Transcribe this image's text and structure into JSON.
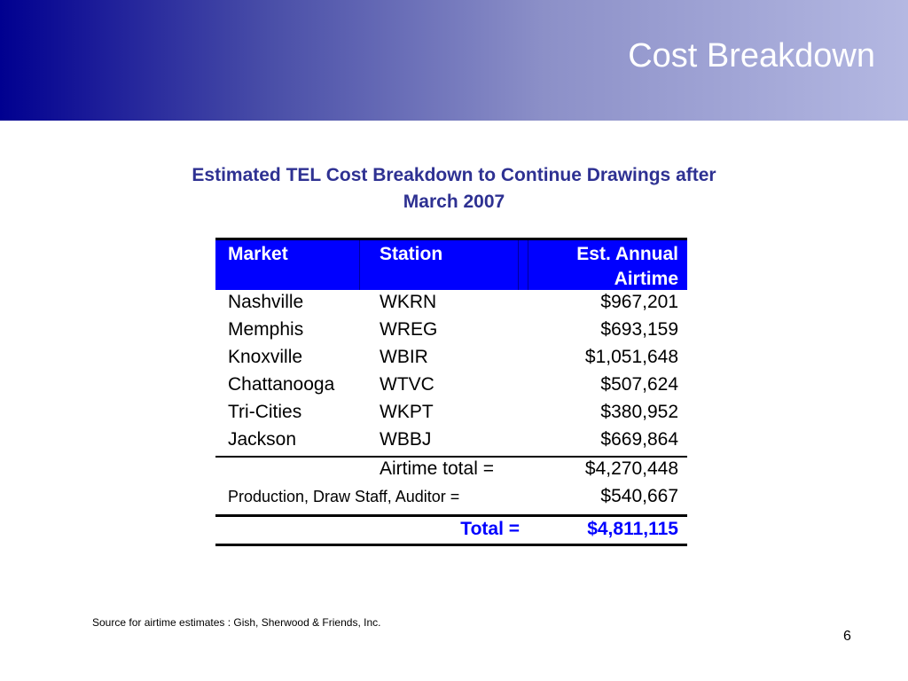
{
  "slide": {
    "title": "Cost Breakdown",
    "subtitle_line1": "Estimated TEL Cost Breakdown to Continue Drawings after",
    "subtitle_line2": "March 2007",
    "source": "Source for airtime estimates : Gish, Sherwood & Friends, Inc.",
    "page_number": "6"
  },
  "table": {
    "headers": {
      "market": "Market",
      "station": "Station",
      "airtime_line1": "Est. Annual",
      "airtime_line2": "Airtime"
    },
    "rows": [
      {
        "market": "Nashville",
        "station": "WKRN",
        "airtime": "$967,201"
      },
      {
        "market": "Memphis",
        "station": "WREG",
        "airtime": "$693,159"
      },
      {
        "market": "Knoxville",
        "station": "WBIR",
        "airtime": "$1,051,648"
      },
      {
        "market": "Chattanooga",
        "station": "WTVC",
        "airtime": "$507,624"
      },
      {
        "market": "Tri-Cities",
        "station": "WKPT",
        "airtime": "$380,952"
      },
      {
        "market": "Jackson",
        "station": "WBBJ",
        "airtime": "$669,864"
      }
    ],
    "airtime_total_label": "Airtime total =",
    "airtime_total_value": "$4,270,448",
    "production_label": "Production, Draw Staff, Auditor =",
    "production_value": "$540,667",
    "total_label": "Total =",
    "total_value": "$4,811,115"
  }
}
